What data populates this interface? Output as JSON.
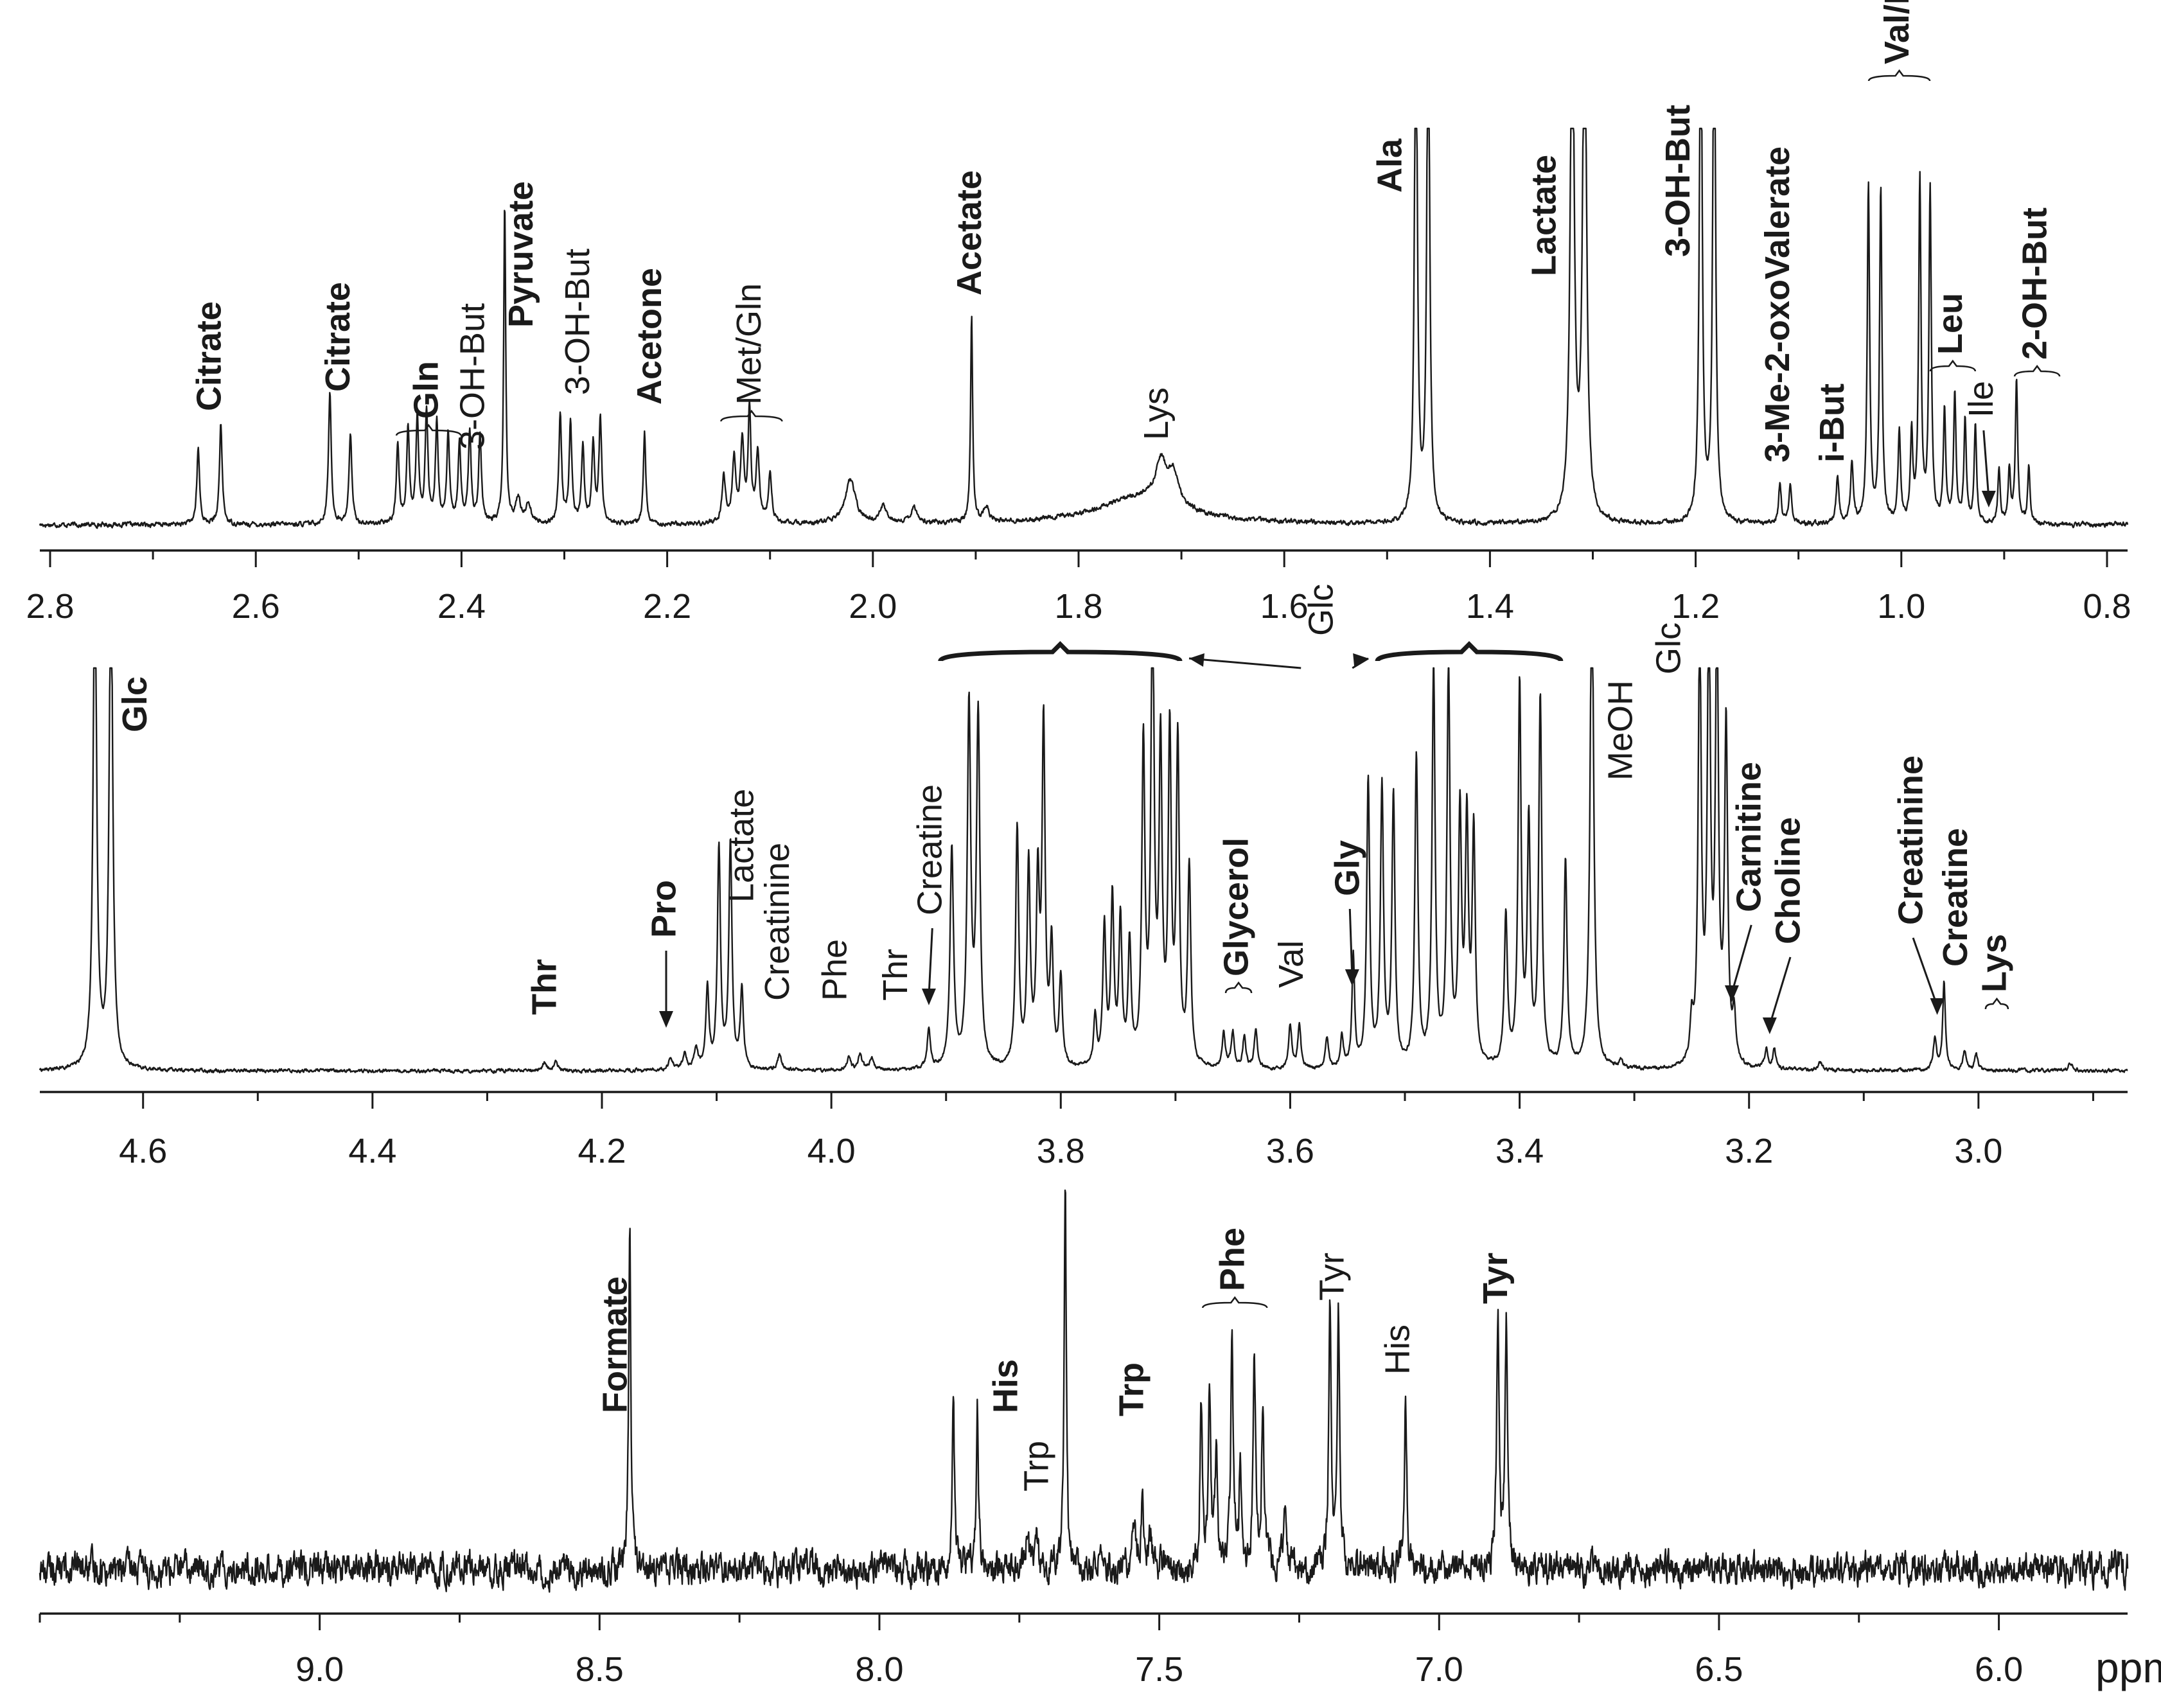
{
  "figure": {
    "unit_label": "ppm",
    "colors": {
      "ink": "#1a1a1a",
      "background": "#ffffff"
    }
  },
  "chart_data": [
    {
      "type": "line",
      "id": "panel-top",
      "title": "",
      "xlabel": "",
      "ylabel": "",
      "axis": "reversed",
      "xlim": [
        2.81,
        0.78
      ],
      "ticks": [
        2.8,
        2.6,
        2.4,
        2.2,
        2.0,
        1.8,
        1.6,
        1.4,
        1.2,
        1.0,
        0.8
      ],
      "tick_labels": [
        "2.8",
        "2.6",
        "2.4",
        "2.2",
        "2.0",
        "1.8",
        "1.6",
        "1.4",
        "1.2",
        "1.0",
        "0.8"
      ],
      "grid": false,
      "noise": 0.004,
      "peaks": [
        {
          "x": 2.656,
          "h": 0.19,
          "w": 0.0016
        },
        {
          "x": 2.634,
          "h": 0.25,
          "w": 0.0016
        },
        {
          "x": 2.528,
          "h": 0.33,
          "w": 0.0016
        },
        {
          "x": 2.508,
          "h": 0.23,
          "w": 0.0016
        },
        {
          "x": 2.462,
          "h": 0.2,
          "w": 0.0016
        },
        {
          "x": 2.452,
          "h": 0.24,
          "w": 0.0016
        },
        {
          "x": 2.443,
          "h": 0.26,
          "w": 0.0016
        },
        {
          "x": 2.434,
          "h": 0.28,
          "w": 0.0016
        },
        {
          "x": 2.424,
          "h": 0.25,
          "w": 0.0016
        },
        {
          "x": 2.413,
          "h": 0.22,
          "w": 0.0016
        },
        {
          "x": 2.402,
          "h": 0.2,
          "w": 0.0016
        },
        {
          "x": 2.392,
          "h": 0.23,
          "w": 0.0016
        },
        {
          "x": 2.382,
          "h": 0.22,
          "w": 0.0016
        },
        {
          "x": 2.358,
          "h": 0.8,
          "w": 0.0012
        },
        {
          "x": 2.345,
          "h": 0.06,
          "w": 0.003
        },
        {
          "x": 2.335,
          "h": 0.05,
          "w": 0.003
        },
        {
          "x": 2.304,
          "h": 0.27,
          "w": 0.0016
        },
        {
          "x": 2.294,
          "h": 0.25,
          "w": 0.0016
        },
        {
          "x": 2.282,
          "h": 0.19,
          "w": 0.0016
        },
        {
          "x": 2.272,
          "h": 0.2,
          "w": 0.0016
        },
        {
          "x": 2.265,
          "h": 0.26,
          "w": 0.0016
        },
        {
          "x": 2.222,
          "h": 0.23,
          "w": 0.0014
        },
        {
          "x": 2.145,
          "h": 0.12,
          "w": 0.002
        },
        {
          "x": 2.135,
          "h": 0.16,
          "w": 0.002
        },
        {
          "x": 2.127,
          "h": 0.2,
          "w": 0.002
        },
        {
          "x": 2.12,
          "h": 0.28,
          "w": 0.0016
        },
        {
          "x": 2.112,
          "h": 0.17,
          "w": 0.002
        },
        {
          "x": 2.1,
          "h": 0.12,
          "w": 0.002
        },
        {
          "x": 2.022,
          "h": 0.11,
          "w": 0.006
        },
        {
          "x": 1.99,
          "h": 0.04,
          "w": 0.004
        },
        {
          "x": 1.96,
          "h": 0.04,
          "w": 0.004
        },
        {
          "x": 1.904,
          "h": 0.52,
          "w": 0.0012
        },
        {
          "x": 1.89,
          "h": 0.04,
          "w": 0.003
        },
        {
          "x": 1.74,
          "h": 0.07,
          "w": 0.05
        },
        {
          "x": 1.72,
          "h": 0.1,
          "w": 0.006
        },
        {
          "x": 1.708,
          "h": 0.08,
          "w": 0.006
        },
        {
          "x": 1.472,
          "h": 1.4,
          "w": 0.0016
        },
        {
          "x": 1.46,
          "h": 1.4,
          "w": 0.0016
        },
        {
          "x": 1.32,
          "h": 1.4,
          "w": 0.0022
        },
        {
          "x": 1.308,
          "h": 1.4,
          "w": 0.0022
        },
        {
          "x": 1.195,
          "h": 1.4,
          "w": 0.0016
        },
        {
          "x": 1.182,
          "h": 1.4,
          "w": 0.0016
        },
        {
          "x": 1.118,
          "h": 0.1,
          "w": 0.0016
        },
        {
          "x": 1.108,
          "h": 0.1,
          "w": 0.0016
        },
        {
          "x": 1.062,
          "h": 0.12,
          "w": 0.0016
        },
        {
          "x": 1.048,
          "h": 0.15,
          "w": 0.0016
        },
        {
          "x": 1.032,
          "h": 0.85,
          "w": 0.0014
        },
        {
          "x": 1.02,
          "h": 0.84,
          "w": 0.0014
        },
        {
          "x": 1.002,
          "h": 0.23,
          "w": 0.0014
        },
        {
          "x": 0.99,
          "h": 0.22,
          "w": 0.0014
        },
        {
          "x": 0.982,
          "h": 0.86,
          "w": 0.0014
        },
        {
          "x": 0.972,
          "h": 0.84,
          "w": 0.0014
        },
        {
          "x": 0.958,
          "h": 0.28,
          "w": 0.0014
        },
        {
          "x": 0.948,
          "h": 0.32,
          "w": 0.0014
        },
        {
          "x": 0.938,
          "h": 0.26,
          "w": 0.0014
        },
        {
          "x": 0.928,
          "h": 0.24,
          "w": 0.0014
        },
        {
          "x": 0.905,
          "h": 0.14,
          "w": 0.0014
        },
        {
          "x": 0.895,
          "h": 0.13,
          "w": 0.0014
        },
        {
          "x": 0.888,
          "h": 0.36,
          "w": 0.0014
        },
        {
          "x": 0.876,
          "h": 0.14,
          "w": 0.0014
        }
      ],
      "annotations": [
        {
          "text": "Citrate",
          "x": 2.643,
          "bold": true
        },
        {
          "text": "Citrate",
          "x": 2.518,
          "bold": true
        },
        {
          "text": "Gln",
          "x": 2.432,
          "bold": true
        },
        {
          "text": "3-OH-But",
          "x": 2.387,
          "bold": false
        },
        {
          "text": "Pyruvate",
          "x": 2.34,
          "bold": true
        },
        {
          "text": "3-OH-But",
          "x": 2.285,
          "bold": false
        },
        {
          "text": "Acetone",
          "x": 2.215,
          "bold": true
        },
        {
          "text": "Met/Gln",
          "x": 2.118,
          "bold": false
        },
        {
          "text": "Acetate",
          "x": 1.904,
          "bold": true
        },
        {
          "text": "Lys",
          "x": 1.722,
          "bold": false
        },
        {
          "text": "Ala",
          "x": 1.495,
          "bold": true
        },
        {
          "text": "Lactate",
          "x": 1.345,
          "bold": true
        },
        {
          "text": "3-OH-But",
          "x": 1.215,
          "bold": true
        },
        {
          "text": "3-Me-2-oxoValerate",
          "x": 1.118,
          "bold": true
        },
        {
          "text": "i-But",
          "x": 1.065,
          "bold": true
        },
        {
          "text": "Val/Ile",
          "x": 1.002,
          "bold": true
        },
        {
          "text": "Leu",
          "x": 0.95,
          "bold": true
        },
        {
          "text": "Ile",
          "x": 0.92,
          "bold": false
        },
        {
          "text": "2-OH-But",
          "x": 0.868,
          "bold": true
        }
      ]
    },
    {
      "type": "line",
      "id": "panel-middle",
      "title": "",
      "xlabel": "",
      "ylabel": "",
      "axis": "reversed",
      "xlim": [
        4.69,
        2.87
      ],
      "ticks": [
        4.6,
        4.4,
        4.2,
        4.0,
        3.8,
        3.6,
        3.4,
        3.2,
        3.0
      ],
      "tick_labels": [
        "4.6",
        "4.4",
        "4.2",
        "4.0",
        "3.8",
        "3.6",
        "3.4",
        "3.2",
        "3.0"
      ],
      "grid": false,
      "noise": 0.003,
      "peaks": [
        {
          "x": 4.642,
          "h": 1.3,
          "w": 0.0018
        },
        {
          "x": 4.628,
          "h": 1.3,
          "w": 0.0018
        },
        {
          "x": 4.25,
          "h": 0.02,
          "w": 0.002
        },
        {
          "x": 4.24,
          "h": 0.02,
          "w": 0.002
        },
        {
          "x": 4.14,
          "h": 0.03,
          "w": 0.002
        },
        {
          "x": 4.128,
          "h": 0.04,
          "w": 0.002
        },
        {
          "x": 4.118,
          "h": 0.05,
          "w": 0.002
        },
        {
          "x": 4.108,
          "h": 0.2,
          "w": 0.0016
        },
        {
          "x": 4.098,
          "h": 0.55,
          "w": 0.0016
        },
        {
          "x": 4.088,
          "h": 0.57,
          "w": 0.0016
        },
        {
          "x": 4.078,
          "h": 0.2,
          "w": 0.0016
        },
        {
          "x": 4.045,
          "h": 0.04,
          "w": 0.002
        },
        {
          "x": 3.985,
          "h": 0.03,
          "w": 0.002
        },
        {
          "x": 3.975,
          "h": 0.04,
          "w": 0.002
        },
        {
          "x": 3.965,
          "h": 0.03,
          "w": 0.002
        },
        {
          "x": 3.915,
          "h": 0.1,
          "w": 0.0016
        },
        {
          "x": 3.895,
          "h": 0.55,
          "w": 0.0018
        },
        {
          "x": 3.88,
          "h": 0.9,
          "w": 0.0018
        },
        {
          "x": 3.872,
          "h": 0.88,
          "w": 0.0018
        },
        {
          "x": 3.838,
          "h": 0.6,
          "w": 0.0016
        },
        {
          "x": 3.828,
          "h": 0.5,
          "w": 0.0016
        },
        {
          "x": 3.82,
          "h": 0.45,
          "w": 0.0016
        },
        {
          "x": 3.815,
          "h": 0.85,
          "w": 0.0016
        },
        {
          "x": 3.808,
          "h": 0.3,
          "w": 0.0016
        },
        {
          "x": 3.8,
          "h": 0.22,
          "w": 0.0016
        },
        {
          "x": 3.77,
          "h": 0.12,
          "w": 0.0016
        },
        {
          "x": 3.762,
          "h": 0.35,
          "w": 0.0016
        },
        {
          "x": 3.755,
          "h": 0.42,
          "w": 0.0016
        },
        {
          "x": 3.748,
          "h": 0.36,
          "w": 0.0016
        },
        {
          "x": 3.74,
          "h": 0.3,
          "w": 0.0016
        },
        {
          "x": 3.728,
          "h": 0.8,
          "w": 0.0016
        },
        {
          "x": 3.72,
          "h": 1.2,
          "w": 0.0016
        },
        {
          "x": 3.713,
          "h": 0.78,
          "w": 0.0016
        },
        {
          "x": 3.705,
          "h": 0.82,
          "w": 0.0016
        },
        {
          "x": 3.698,
          "h": 0.8,
          "w": 0.0016
        },
        {
          "x": 3.688,
          "h": 0.5,
          "w": 0.0016
        },
        {
          "x": 3.658,
          "h": 0.09,
          "w": 0.0016
        },
        {
          "x": 3.65,
          "h": 0.09,
          "w": 0.0016
        },
        {
          "x": 3.64,
          "h": 0.08,
          "w": 0.0016
        },
        {
          "x": 3.63,
          "h": 0.1,
          "w": 0.0016
        },
        {
          "x": 3.6,
          "h": 0.11,
          "w": 0.0016
        },
        {
          "x": 3.592,
          "h": 0.11,
          "w": 0.0016
        },
        {
          "x": 3.568,
          "h": 0.08,
          "w": 0.0016
        },
        {
          "x": 3.555,
          "h": 0.08,
          "w": 0.0016
        },
        {
          "x": 3.545,
          "h": 0.28,
          "w": 0.0014
        },
        {
          "x": 3.532,
          "h": 0.72,
          "w": 0.0016
        },
        {
          "x": 3.52,
          "h": 0.7,
          "w": 0.0016
        },
        {
          "x": 3.51,
          "h": 0.68,
          "w": 0.0016
        },
        {
          "x": 3.49,
          "h": 0.78,
          "w": 0.0016
        },
        {
          "x": 3.475,
          "h": 1.0,
          "w": 0.0016
        },
        {
          "x": 3.462,
          "h": 1.0,
          "w": 0.0016
        },
        {
          "x": 3.452,
          "h": 0.62,
          "w": 0.0016
        },
        {
          "x": 3.446,
          "h": 0.6,
          "w": 0.0016
        },
        {
          "x": 3.44,
          "h": 0.58,
          "w": 0.0016
        },
        {
          "x": 3.412,
          "h": 0.38,
          "w": 0.0016
        },
        {
          "x": 3.4,
          "h": 0.95,
          "w": 0.0016
        },
        {
          "x": 3.392,
          "h": 0.6,
          "w": 0.0016
        },
        {
          "x": 3.382,
          "h": 0.92,
          "w": 0.0016
        },
        {
          "x": 3.36,
          "h": 0.52,
          "w": 0.0016
        },
        {
          "x": 3.337,
          "h": 1.3,
          "w": 0.0018
        },
        {
          "x": 3.312,
          "h": 0.02,
          "w": 0.002
        },
        {
          "x": 3.25,
          "h": 0.1,
          "w": 0.0016
        },
        {
          "x": 3.243,
          "h": 1.1,
          "w": 0.0016
        },
        {
          "x": 3.235,
          "h": 1.15,
          "w": 0.0016
        },
        {
          "x": 3.228,
          "h": 1.1,
          "w": 0.0016
        },
        {
          "x": 3.22,
          "h": 0.85,
          "w": 0.0016
        },
        {
          "x": 3.213,
          "h": 0.12,
          "w": 0.0016
        },
        {
          "x": 3.185,
          "h": 0.05,
          "w": 0.0016
        },
        {
          "x": 3.178,
          "h": 0.05,
          "w": 0.0016
        },
        {
          "x": 3.138,
          "h": 0.02,
          "w": 0.002
        },
        {
          "x": 3.038,
          "h": 0.08,
          "w": 0.0016
        },
        {
          "x": 3.03,
          "h": 0.22,
          "w": 0.0014
        },
        {
          "x": 3.012,
          "h": 0.05,
          "w": 0.0016
        },
        {
          "x": 3.002,
          "h": 0.04,
          "w": 0.0016
        },
        {
          "x": 2.92,
          "h": 0.02,
          "w": 0.002
        }
      ],
      "annotations": [
        {
          "text": "Glc",
          "x": 4.605,
          "bold": true
        },
        {
          "text": "Thr",
          "x": 4.248,
          "bold": true
        },
        {
          "text": "Pro",
          "x": 4.144,
          "bold": true
        },
        {
          "text": "Lactate",
          "x": 4.076,
          "bold": false
        },
        {
          "text": "Creatinine",
          "x": 4.045,
          "bold": false
        },
        {
          "text": "Phe",
          "x": 3.995,
          "bold": false
        },
        {
          "text": "Thr",
          "x": 3.942,
          "bold": false
        },
        {
          "text": "Creatine",
          "x": 3.912,
          "bold": false
        },
        {
          "text": "Glc",
          "x": 3.571,
          "bold": false
        },
        {
          "text": "Glycerol",
          "x": 3.645,
          "bold": true
        },
        {
          "text": "Val",
          "x": 3.597,
          "bold": false
        },
        {
          "text": "Gly",
          "x": 3.548,
          "bold": true
        },
        {
          "text": "MeOH",
          "x": 3.31,
          "bold": false
        },
        {
          "text": "Glc",
          "x": 3.268,
          "bold": false
        },
        {
          "text": "Carnitine",
          "x": 3.198,
          "bold": true
        },
        {
          "text": "Choline",
          "x": 3.164,
          "bold": true
        },
        {
          "text": "Creatinine",
          "x": 3.057,
          "bold": true
        },
        {
          "text": "Creatine",
          "x": 3.018,
          "bold": true
        },
        {
          "text": "Lys",
          "x": 2.984,
          "bold": true
        }
      ]
    },
    {
      "type": "line",
      "id": "panel-bottom",
      "title": "",
      "xlabel": "ppm",
      "ylabel": "",
      "axis": "reversed",
      "xlim": [
        9.5,
        5.77
      ],
      "ticks": [
        9.0,
        8.5,
        8.0,
        7.5,
        7.0,
        6.5,
        6.0
      ],
      "tick_labels": [
        "9.0",
        "8.5",
        "8.0",
        "7.5",
        "7.0",
        "6.5",
        "6.0"
      ],
      "grid": false,
      "noise": 0.028,
      "peaks": [
        {
          "x": 8.446,
          "h": 0.92,
          "w": 0.0022
        },
        {
          "x": 7.868,
          "h": 0.44,
          "w": 0.0024
        },
        {
          "x": 7.825,
          "h": 0.43,
          "w": 0.0024
        },
        {
          "x": 7.735,
          "h": 0.1,
          "w": 0.003
        },
        {
          "x": 7.72,
          "h": 0.09,
          "w": 0.003
        },
        {
          "x": 7.668,
          "h": 1.0,
          "w": 0.0022
        },
        {
          "x": 7.545,
          "h": 0.12,
          "w": 0.003
        },
        {
          "x": 7.53,
          "h": 0.16,
          "w": 0.003
        },
        {
          "x": 7.515,
          "h": 0.1,
          "w": 0.003
        },
        {
          "x": 7.425,
          "h": 0.42,
          "w": 0.0026
        },
        {
          "x": 7.41,
          "h": 0.44,
          "w": 0.0026
        },
        {
          "x": 7.398,
          "h": 0.3,
          "w": 0.0026
        },
        {
          "x": 7.37,
          "h": 0.62,
          "w": 0.0026
        },
        {
          "x": 7.355,
          "h": 0.25,
          "w": 0.0026
        },
        {
          "x": 7.33,
          "h": 0.52,
          "w": 0.0026
        },
        {
          "x": 7.315,
          "h": 0.42,
          "w": 0.0026
        },
        {
          "x": 7.275,
          "h": 0.16,
          "w": 0.003
        },
        {
          "x": 7.195,
          "h": 0.66,
          "w": 0.0026
        },
        {
          "x": 7.18,
          "h": 0.66,
          "w": 0.0026
        },
        {
          "x": 7.06,
          "h": 0.44,
          "w": 0.0026
        },
        {
          "x": 6.895,
          "h": 0.64,
          "w": 0.0026
        },
        {
          "x": 6.88,
          "h": 0.64,
          "w": 0.0026
        }
      ],
      "annotations": [
        {
          "text": "Formate",
          "x": 8.468,
          "bold": true
        },
        {
          "text": "His",
          "x": 7.77,
          "bold": true
        },
        {
          "text": "Trp",
          "x": 7.715,
          "bold": false
        },
        {
          "text": "Trp",
          "x": 7.545,
          "bold": true
        },
        {
          "text": "Phe",
          "x": 7.365,
          "bold": true
        },
        {
          "text": "Tyr",
          "x": 7.187,
          "bold": false
        },
        {
          "text": "His",
          "x": 7.07,
          "bold": false
        },
        {
          "text": "Tyr",
          "x": 6.895,
          "bold": true
        }
      ]
    }
  ]
}
